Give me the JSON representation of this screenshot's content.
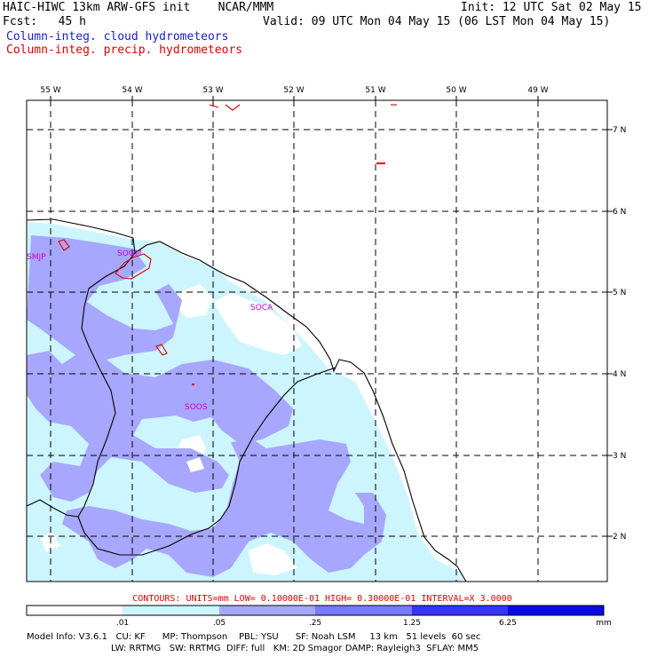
{
  "header": {
    "model_line": "HAIC-HIWC 13km ARW-GFS init    NCAR/MMM",
    "init_line": "Init: 12 UTC Sat 02 May 15",
    "fcst_line": "Fcst:   45 h",
    "valid_line": "Valid: 09 UTC Mon 04 May 15 (06 LST Mon 04 May 15)",
    "field1": "Column-integ. cloud hydrometeors",
    "field2": "Column-integ. precip. hydrometeors"
  },
  "colors": {
    "field1": "#1a1ad6",
    "field2": "#e00000",
    "shade_light": "#ccf5ff",
    "shade_mid": "#a7a7ff",
    "shade_dark": "#7a7aff",
    "shade_deep": "#3535ff",
    "shade_max": "#0a0ae6",
    "station": "#cc00cc"
  },
  "map": {
    "lon_labels": [
      "55 W",
      "54 W",
      "53 W",
      "52 W",
      "51 W",
      "50 W",
      "49 W"
    ],
    "lat_labels": [
      "7 N",
      "6 N",
      "5 N",
      "4 N",
      "3 N",
      "2 N"
    ],
    "stations": [
      "SMJP",
      "SOGM",
      "SOCA",
      "SOOS"
    ]
  },
  "contours_line": "CONTOURS:  UNITS=mm  LOW= 0.10000E-01  HIGH= 0.30000E-01  INTERVAL=X  3.0000",
  "colorbar": {
    "labels": [
      ".01",
      ".05",
      ".25",
      "1.25",
      "6.25"
    ],
    "unit": "mm"
  },
  "footer": {
    "line1": "Model Info: V3.6.1   CU: KF      MP: Thompson    PBL: YSU      SF: Noah LSM     13 km   51 levels  60 sec",
    "line2": "LW: RRTMG   SW: RRTMG  DIFF: full   KM: 2D Smagor DAMP: Rayleigh3  SFLAY: MM5"
  }
}
